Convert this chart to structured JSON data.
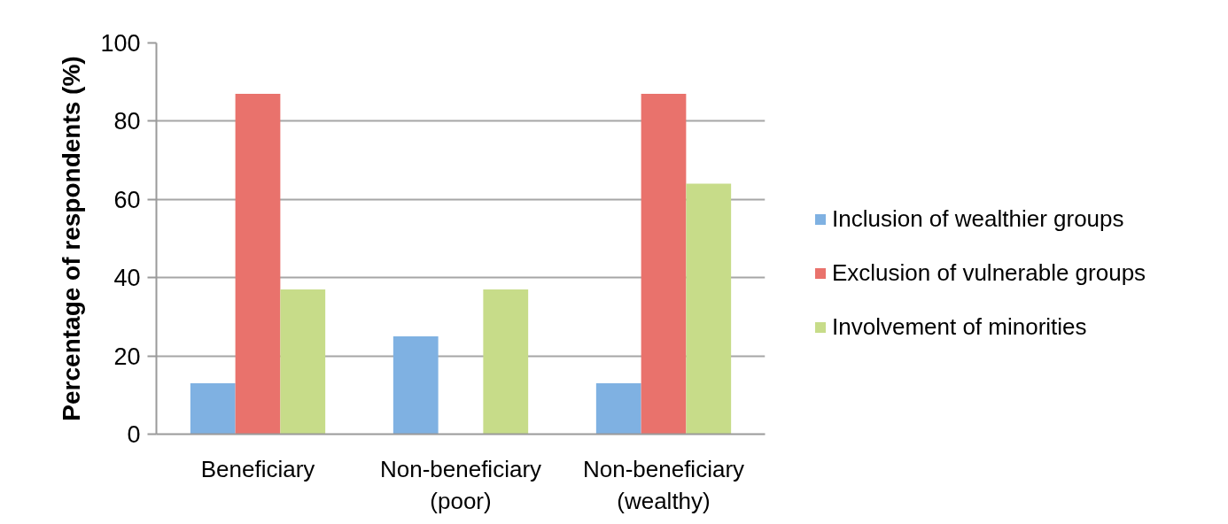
{
  "chart_data": {
    "type": "bar",
    "ylabel": "Percentage of respondents (%)",
    "categories": [
      "Beneficiary",
      "Non-beneficiary (poor)",
      "Non-beneficiary (wealthy)"
    ],
    "series": [
      {
        "name": "Inclusion of wealthier groups",
        "color": "#7fb1e2",
        "values": [
          13,
          25,
          13
        ]
      },
      {
        "name": "Exclusion of vulnerable groups",
        "color": "#e9726c",
        "values": [
          87,
          0,
          87
        ]
      },
      {
        "name": "Involvement of minorities",
        "color": "#c7dc89",
        "values": [
          37,
          37,
          64
        ]
      }
    ],
    "ylim": [
      0,
      100
    ],
    "yticks": [
      0,
      20,
      40,
      60,
      80,
      100
    ],
    "grid": "y",
    "legend": "right"
  }
}
